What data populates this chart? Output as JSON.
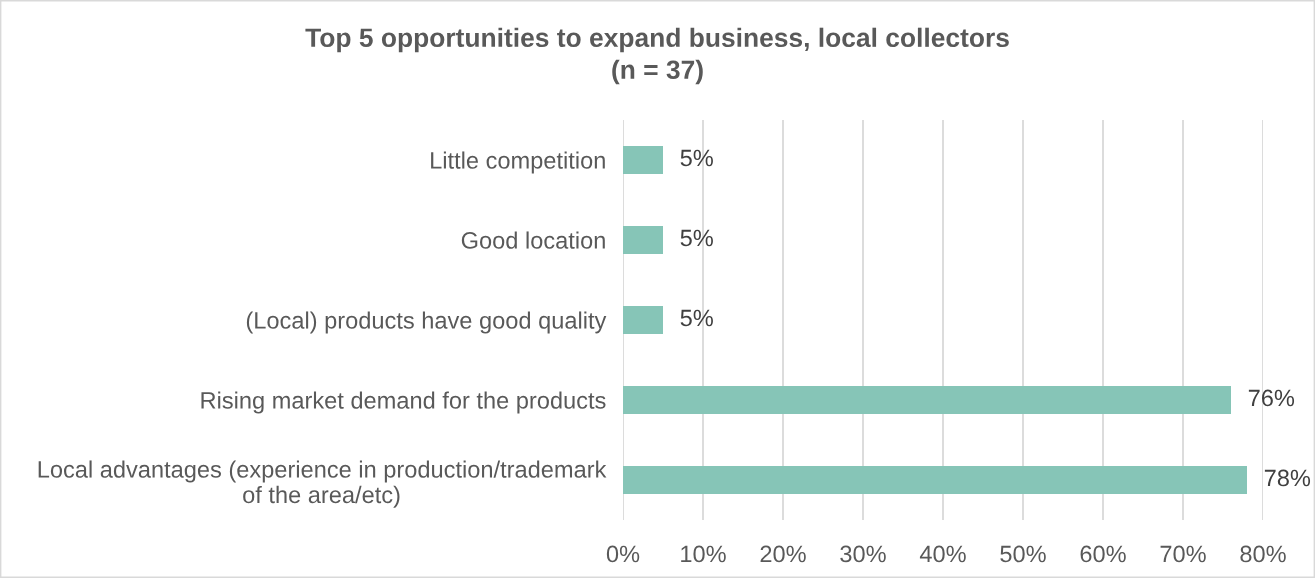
{
  "chart_data": {
    "type": "bar",
    "orientation": "horizontal",
    "title": "Top 5 opportunities to expand business, local collectors",
    "subtitle": "(n = 37)",
    "categories": [
      "Little competition",
      "Good location",
      "(Local) products have good quality",
      "Rising market demand for the products",
      "Local advantages (experience in production/trademark\nof the area/etc)"
    ],
    "values": [
      5,
      5,
      5,
      76,
      78
    ],
    "value_labels": [
      "5%",
      "5%",
      "5%",
      "76%",
      "78%"
    ],
    "color": "#86c5b7",
    "xlim": [
      0,
      80
    ],
    "xticks": [
      {
        "value": 0,
        "label": "0%"
      },
      {
        "value": 10,
        "label": "10%"
      },
      {
        "value": 20,
        "label": "20%"
      },
      {
        "value": 30,
        "label": "30%"
      },
      {
        "value": 40,
        "label": "40%"
      },
      {
        "value": 50,
        "label": "50%"
      },
      {
        "value": 60,
        "label": "60%"
      },
      {
        "value": 70,
        "label": "70%"
      },
      {
        "value": 80,
        "label": "80%"
      }
    ],
    "grid": "x"
  }
}
